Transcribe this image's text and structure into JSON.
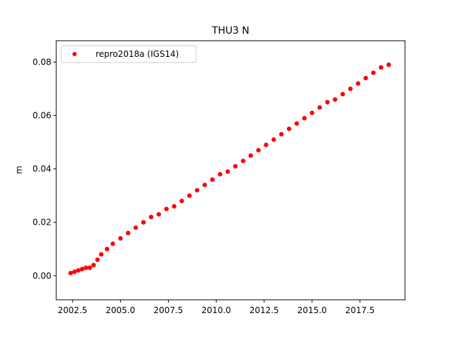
{
  "chart_data": {
    "type": "scatter",
    "title": "THU3 N",
    "xlabel": "",
    "ylabel": "m",
    "xlim": [
      2001.65,
      2019.85
    ],
    "ylim": [
      -0.009,
      0.088
    ],
    "xticks": [
      2002.5,
      2005.0,
      2007.5,
      2010.0,
      2012.5,
      2015.0,
      2017.5
    ],
    "xtick_labels": [
      "2002.5",
      "2005.0",
      "2007.5",
      "2010.0",
      "2012.5",
      "2015.0",
      "2017.5"
    ],
    "yticks": [
      0.0,
      0.02,
      0.04,
      0.06,
      0.08
    ],
    "ytick_labels": [
      "0.00",
      "0.02",
      "0.04",
      "0.06",
      "0.08"
    ],
    "grid": false,
    "legend_position": "top-left",
    "series": [
      {
        "name": "repro2018a (IGS14)",
        "color": "#ff0000",
        "marker": "circle",
        "x": [
          2002.4,
          2002.6,
          2002.8,
          2003.0,
          2003.2,
          2003.4,
          2003.6,
          2003.8,
          2004.0,
          2004.3,
          2004.6,
          2005.0,
          2005.4,
          2005.8,
          2006.2,
          2006.6,
          2007.0,
          2007.4,
          2007.8,
          2008.2,
          2008.6,
          2009.0,
          2009.4,
          2009.8,
          2010.2,
          2010.6,
          2011.0,
          2011.4,
          2011.8,
          2012.2,
          2012.6,
          2013.0,
          2013.4,
          2013.8,
          2014.2,
          2014.6,
          2015.0,
          2015.4,
          2015.8,
          2016.2,
          2016.6,
          2017.0,
          2017.4,
          2017.8,
          2018.2,
          2018.6,
          2019.0
        ],
        "y": [
          0.001,
          0.0015,
          0.002,
          0.0025,
          0.003,
          0.003,
          0.004,
          0.006,
          0.008,
          0.01,
          0.012,
          0.014,
          0.016,
          0.018,
          0.02,
          0.022,
          0.023,
          0.025,
          0.026,
          0.028,
          0.03,
          0.032,
          0.034,
          0.036,
          0.038,
          0.039,
          0.041,
          0.043,
          0.045,
          0.047,
          0.049,
          0.051,
          0.053,
          0.055,
          0.057,
          0.059,
          0.061,
          0.063,
          0.065,
          0.066,
          0.068,
          0.07,
          0.072,
          0.074,
          0.076,
          0.078,
          0.079
        ]
      }
    ]
  }
}
